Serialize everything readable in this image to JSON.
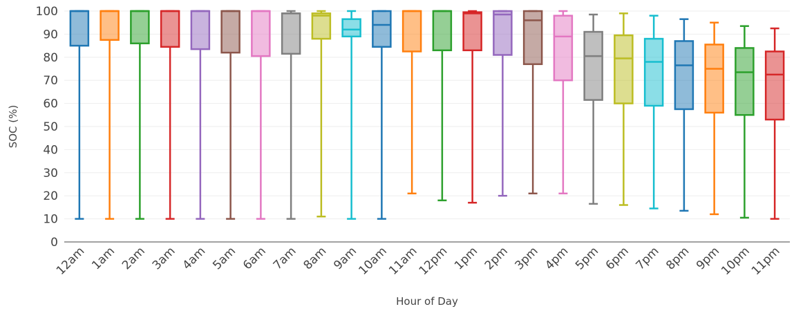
{
  "chart_data": {
    "type": "box",
    "xlabel": "Hour of Day",
    "ylabel": "SOC (%)",
    "ylim": [
      0,
      100
    ],
    "yticks": [
      0,
      10,
      20,
      30,
      40,
      50,
      60,
      70,
      80,
      90,
      100
    ],
    "grid": true,
    "categories": [
      "12am",
      "1am",
      "2am",
      "3am",
      "4am",
      "5am",
      "6am",
      "7am",
      "8am",
      "9am",
      "10am",
      "11am",
      "12pm",
      "1pm",
      "2pm",
      "3pm",
      "4pm",
      "5pm",
      "6pm",
      "7pm",
      "8pm",
      "9pm",
      "10pm",
      "11pm"
    ],
    "colors": [
      "#1f77b4",
      "#ff7f0e",
      "#2ca02c",
      "#d62728",
      "#9467bd",
      "#8c564b",
      "#e377c2",
      "#7f7f7f",
      "#bcbd22",
      "#17becf",
      "#1f77b4",
      "#ff7f0e",
      "#2ca02c",
      "#d62728",
      "#9467bd",
      "#8c564b",
      "#e377c2",
      "#7f7f7f",
      "#bcbd22",
      "#17becf",
      "#1f77b4",
      "#ff7f0e",
      "#2ca02c",
      "#d62728"
    ],
    "boxes": [
      {
        "min": 10,
        "q1": 85,
        "median": 100,
        "q3": 100,
        "max": 100
      },
      {
        "min": 10,
        "q1": 87.5,
        "median": 100,
        "q3": 100,
        "max": 100
      },
      {
        "min": 10,
        "q1": 86,
        "median": 100,
        "q3": 100,
        "max": 100
      },
      {
        "min": 10,
        "q1": 84.5,
        "median": 100,
        "q3": 100,
        "max": 100
      },
      {
        "min": 10,
        "q1": 83.5,
        "median": 100,
        "q3": 100,
        "max": 100
      },
      {
        "min": 10,
        "q1": 82,
        "median": 100,
        "q3": 100,
        "max": 100
      },
      {
        "min": 10,
        "q1": 80.5,
        "median": 100,
        "q3": 100,
        "max": 100
      },
      {
        "min": 10,
        "q1": 81.5,
        "median": 99,
        "q3": 99,
        "max": 100
      },
      {
        "min": 11,
        "q1": 88,
        "median": 98,
        "q3": 99,
        "max": 100
      },
      {
        "min": 10,
        "q1": 89,
        "median": 92,
        "q3": 96.5,
        "max": 100
      },
      {
        "min": 10,
        "q1": 84.5,
        "median": 94,
        "q3": 100,
        "max": 100
      },
      {
        "min": 21,
        "q1": 82.5,
        "median": 100,
        "q3": 100,
        "max": 100
      },
      {
        "min": 18,
        "q1": 83,
        "median": 100,
        "q3": 100,
        "max": 100
      },
      {
        "min": 17,
        "q1": 83,
        "median": 99,
        "q3": 99.5,
        "max": 100
      },
      {
        "min": 20,
        "q1": 81,
        "median": 98.5,
        "q3": 100,
        "max": 100
      },
      {
        "min": 21,
        "q1": 77,
        "median": 96,
        "q3": 100,
        "max": 100
      },
      {
        "min": 21,
        "q1": 70,
        "median": 89,
        "q3": 98,
        "max": 100
      },
      {
        "min": 16.5,
        "q1": 61.5,
        "median": 80.5,
        "q3": 91,
        "max": 98.5
      },
      {
        "min": 16,
        "q1": 60,
        "median": 79.5,
        "q3": 89.5,
        "max": 99
      },
      {
        "min": 14.5,
        "q1": 59,
        "median": 78,
        "q3": 88,
        "max": 98
      },
      {
        "min": 13.5,
        "q1": 57.5,
        "median": 76.5,
        "q3": 87,
        "max": 96.5
      },
      {
        "min": 12,
        "q1": 56,
        "median": 75,
        "q3": 85.5,
        "max": 95
      },
      {
        "min": 10.5,
        "q1": 55,
        "median": 73.5,
        "q3": 84,
        "max": 93.5
      },
      {
        "min": 10,
        "q1": 53,
        "median": 72.5,
        "q3": 82.5,
        "max": 92.5
      }
    ]
  }
}
